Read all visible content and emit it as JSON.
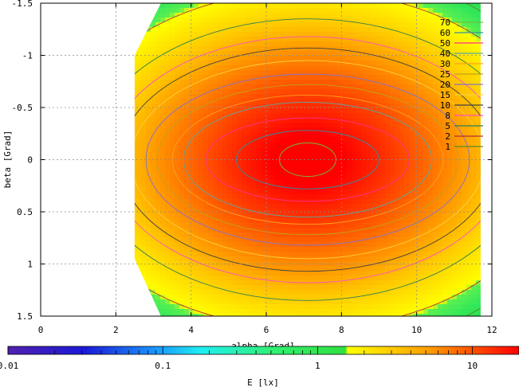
{
  "chart_data": {
    "type": "heatmap",
    "title": "",
    "xlabel": "alpha [Grad]",
    "ylabel": "beta [Grad]",
    "xlim": [
      0,
      12
    ],
    "ylim": [
      -1.5,
      1.5
    ],
    "x_ticks": [
      0,
      2,
      4,
      6,
      8,
      10,
      12
    ],
    "y_ticks": [
      -1.5,
      -1,
      -0.5,
      0,
      0.5,
      1,
      1.5
    ],
    "x_tick_labels": [
      "0",
      "2",
      "4",
      "6",
      "8",
      "10",
      "12"
    ],
    "y_tick_labels": [
      "-1.5",
      "-1",
      "-0.5",
      "0",
      "0.5",
      "1",
      "1.5"
    ],
    "grid": true,
    "data_region": {
      "alpha_min": 2.5,
      "alpha_max": 11.7
    },
    "peak": {
      "alpha": 7.1,
      "beta": 0.0
    },
    "contour_legend": [
      {
        "label": "70",
        "color": "#6fbf3f",
        "radius": [
          0.75,
          0.16
        ]
      },
      {
        "label": "60",
        "color": "#2f8fa0",
        "radius": [
          1.9,
          0.28
        ]
      },
      {
        "label": "50",
        "color": "#ff3090",
        "radius": [
          2.7,
          0.4
        ]
      },
      {
        "label": "40",
        "color": "#5aa8a8",
        "radius": [
          3.3,
          0.55
        ]
      },
      {
        "label": "30",
        "color": "#ffa020",
        "radius": [
          3.6,
          0.62
        ]
      },
      {
        "label": "25",
        "color": "#c0a020",
        "radius": [
          4.0,
          0.72
        ]
      },
      {
        "label": "20",
        "color": "#8070d0",
        "radius": [
          4.3,
          0.82
        ]
      },
      {
        "label": "15",
        "color": "#ffd040",
        "radius": [
          4.7,
          0.95
        ]
      },
      {
        "label": "10",
        "color": "#404040",
        "radius": [
          5.0,
          1.07
        ]
      },
      {
        "label": "8",
        "color": "#ff50c0",
        "radius": [
          5.3,
          1.18
        ]
      },
      {
        "label": "5",
        "color": "#2f7f50",
        "radius": [
          5.8,
          1.35
        ]
      },
      {
        "label": "2",
        "color": "#b03030",
        "radius": [
          6.6,
          1.62
        ]
      },
      {
        "label": "1",
        "color": "#5a8a2a",
        "radius": [
          7.2,
          1.85
        ]
      }
    ],
    "colorbar": {
      "label": "E [lx]",
      "scale": "log",
      "range": [
        0.01,
        20
      ],
      "tick_values": [
        0.01,
        0.1,
        1,
        10
      ],
      "tick_labels": [
        "0.01",
        "0.1",
        "1",
        "10"
      ]
    }
  },
  "colors": {
    "background": "#ffffff",
    "frame": "#000000",
    "grid": "#8c8c8c"
  }
}
